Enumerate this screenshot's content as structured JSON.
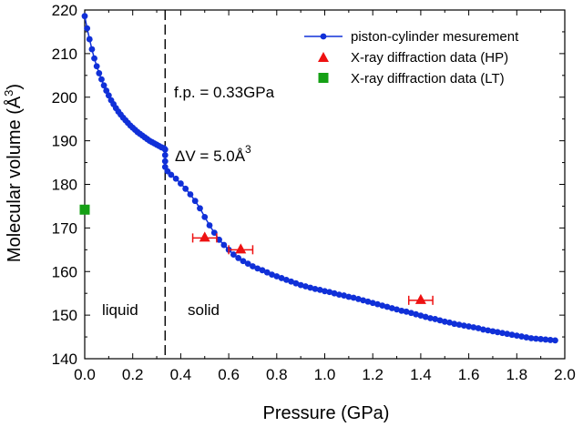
{
  "chart_data": {
    "type": "scatter",
    "xlabel": "Pressure (GPa)",
    "ylabel": "Molecular volume (Å",
    "ylabel_sup": "3",
    "ylabel_close": ")",
    "xlim": [
      0,
      2.0
    ],
    "ylim": [
      140,
      220
    ],
    "xticks": [
      "0.0",
      "0.2",
      "0.4",
      "0.6",
      "0.8",
      "1.0",
      "1.2",
      "1.4",
      "1.6",
      "1.8",
      "2.0"
    ],
    "yticks": [
      "140",
      "150",
      "160",
      "170",
      "180",
      "190",
      "200",
      "210",
      "220"
    ],
    "grid": false,
    "legend_position": "top-right",
    "colors": {
      "piston": "#1030d8",
      "hp": "#ee1111",
      "lt": "#15a015",
      "freezing_line": "#000000"
    },
    "series": [
      {
        "name": "piston-cylinder mesurement",
        "marker": "circle-line",
        "x": [
          0.0,
          0.01,
          0.02,
          0.03,
          0.04,
          0.05,
          0.06,
          0.07,
          0.08,
          0.09,
          0.1,
          0.11,
          0.12,
          0.13,
          0.14,
          0.15,
          0.16,
          0.17,
          0.18,
          0.19,
          0.2,
          0.21,
          0.22,
          0.23,
          0.24,
          0.25,
          0.26,
          0.27,
          0.28,
          0.29,
          0.3,
          0.31,
          0.32,
          0.33,
          0.335,
          0.335,
          0.335,
          0.335,
          0.345,
          0.36,
          0.38,
          0.4,
          0.42,
          0.44,
          0.46,
          0.48,
          0.5,
          0.52,
          0.54,
          0.56,
          0.58,
          0.6,
          0.62,
          0.64,
          0.66,
          0.68,
          0.7,
          0.72,
          0.74,
          0.76,
          0.78,
          0.8,
          0.82,
          0.84,
          0.86,
          0.88,
          0.9,
          0.92,
          0.94,
          0.96,
          0.98,
          1.0,
          1.02,
          1.04,
          1.06,
          1.08,
          1.1,
          1.12,
          1.14,
          1.16,
          1.18,
          1.2,
          1.22,
          1.24,
          1.26,
          1.28,
          1.3,
          1.32,
          1.34,
          1.36,
          1.38,
          1.4,
          1.42,
          1.44,
          1.46,
          1.48,
          1.5,
          1.52,
          1.54,
          1.56,
          1.58,
          1.6,
          1.62,
          1.64,
          1.66,
          1.68,
          1.7,
          1.72,
          1.74,
          1.76,
          1.78,
          1.8,
          1.82,
          1.84,
          1.86,
          1.88,
          1.9,
          1.92,
          1.94,
          1.96
        ],
        "y": [
          218.6,
          215.8,
          213.3,
          211.0,
          208.9,
          207.1,
          205.5,
          204.1,
          202.7,
          201.5,
          200.4,
          199.3,
          198.4,
          197.5,
          196.7,
          196.0,
          195.3,
          194.7,
          194.1,
          193.5,
          193.0,
          192.5,
          192.0,
          191.6,
          191.2,
          190.8,
          190.4,
          190.0,
          189.7,
          189.4,
          189.1,
          188.8,
          188.5,
          188.3,
          188.0,
          186.7,
          185.3,
          184.0,
          183.0,
          182.2,
          181.3,
          180.2,
          179.0,
          177.7,
          176.2,
          174.5,
          172.5,
          170.6,
          168.9,
          167.3,
          166.1,
          165.0,
          163.9,
          163.1,
          162.4,
          161.8,
          161.2,
          160.7,
          160.3,
          159.8,
          159.3,
          158.9,
          158.5,
          158.1,
          157.7,
          157.3,
          156.9,
          156.6,
          156.3,
          156.0,
          155.8,
          155.5,
          155.3,
          155.0,
          154.7,
          154.5,
          154.2,
          154.0,
          153.7,
          153.4,
          153.1,
          152.8,
          152.5,
          152.2,
          151.9,
          151.6,
          151.3,
          151.0,
          150.8,
          150.5,
          150.2,
          149.9,
          149.6,
          149.3,
          149.1,
          148.8,
          148.5,
          148.3,
          148.0,
          147.8,
          147.6,
          147.4,
          147.2,
          147.0,
          146.7,
          146.5,
          146.3,
          146.1,
          145.9,
          145.7,
          145.5,
          145.3,
          145.1,
          144.9,
          144.7,
          144.6,
          144.5,
          144.4,
          144.3,
          144.2
        ]
      },
      {
        "name": "X-ray diffraction data (HP)",
        "marker": "triangle",
        "x": [
          0.5,
          0.65,
          1.4
        ],
        "y": [
          167.7,
          165.0,
          153.4
        ],
        "xerr": [
          0.05,
          0.05,
          0.05
        ]
      },
      {
        "name": "X-ray diffraction data (LT)",
        "marker": "square",
        "x": [
          0.0
        ],
        "y": [
          174.2
        ]
      }
    ],
    "freezing_pressure": 0.335,
    "annotations": {
      "freezing": "f.p. = 0.33GPa",
      "dv_main": "ΔV = 5.0Å",
      "dv_sup": "3",
      "liquid": "liquid",
      "solid": "solid"
    }
  }
}
